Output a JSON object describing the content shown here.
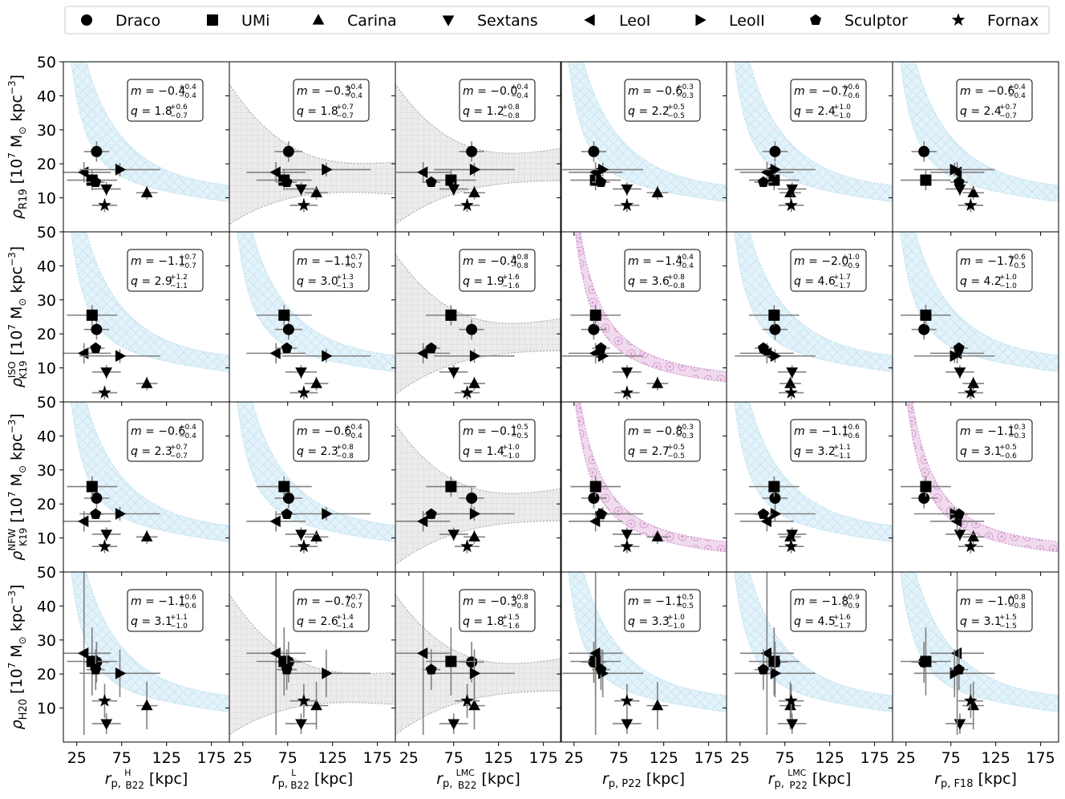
{
  "chart_data": {
    "type": "scatter",
    "title": "",
    "legend": {
      "placement": "top",
      "entries": [
        {
          "name": "Draco",
          "marker": "circle"
        },
        {
          "name": "UMi",
          "marker": "square"
        },
        {
          "name": "Carina",
          "marker": "triangle-up"
        },
        {
          "name": "Sextans",
          "marker": "triangle-down"
        },
        {
          "name": "LeoI",
          "marker": "triangle-left"
        },
        {
          "name": "LeoII",
          "marker": "triangle-right"
        },
        {
          "name": "Sculptor",
          "marker": "pentagon"
        },
        {
          "name": "Fornax",
          "marker": "star"
        }
      ]
    },
    "xlim": [
      10,
      195
    ],
    "ylim": [
      0,
      50
    ],
    "xticks": [
      25,
      75,
      125,
      175
    ],
    "yticks": [
      10,
      20,
      30,
      40,
      50
    ],
    "columns": [
      {
        "xlabel": "r_p, B22^H [kpc]",
        "xlabel_main": "r",
        "xlabel_sub": "p, ",
        "xlabel_sub2": "B22",
        "xlabel_sup": "H",
        "xlabel_unit": " [kpc]"
      },
      {
        "xlabel": "r_p, B22^L [kpc]",
        "xlabel_main": "r",
        "xlabel_sub": "p, ",
        "xlabel_sub2": "B22",
        "xlabel_sup": "L",
        "xlabel_unit": " [kpc]"
      },
      {
        "xlabel": "r_p, B22^LMC [kpc]",
        "xlabel_main": "r",
        "xlabel_sub": "p, ",
        "xlabel_sub2": "B22",
        "xlabel_sup": "LMC",
        "xlabel_unit": " [kpc]"
      },
      {
        "xlabel": "r_p, P22 [kpc]",
        "xlabel_main": "r",
        "xlabel_sub": "p, P22",
        "xlabel_sub2": "",
        "xlabel_sup": "",
        "xlabel_unit": " [kpc]"
      },
      {
        "xlabel": "r_p, P22^LMC [kpc]",
        "xlabel_main": "r",
        "xlabel_sub": "p, ",
        "xlabel_sub2": "P22",
        "xlabel_sup": "LMC",
        "xlabel_unit": " [kpc]"
      },
      {
        "xlabel": "r_p, F18 [kpc]",
        "xlabel_main": "r",
        "xlabel_sub": "p, F18",
        "xlabel_sub2": "",
        "xlabel_sup": "",
        "xlabel_unit": " [kpc]"
      }
    ],
    "rows": [
      {
        "ylabel": "ρ_R19 [10^7 M⊙ kpc^-3]",
        "rho_sub": "R19",
        "rho_sup": "",
        "unit_a": "[10",
        "unit_exp": "7",
        "unit_b": " M",
        "unit_sun": "⊙",
        "unit_c": " kpc",
        "unit_exp2": "−3",
        "unit_d": "]",
        "galaxy_y": [
          23.6,
          15.2,
          11.5,
          12.6,
          17.5,
          18.3,
          14.6,
          7.8
        ]
      },
      {
        "ylabel": "ρ_K19^ISO [10^7 M⊙ kpc^-3]",
        "rho_sub": "K19",
        "rho_sup": "ISO",
        "unit_a": "[10",
        "unit_exp": "7",
        "unit_b": " M",
        "unit_sun": "⊙",
        "unit_c": " kpc",
        "unit_exp2": "−3",
        "unit_d": "]",
        "galaxy_y": [
          21.3,
          25.5,
          5.4,
          8.8,
          14.3,
          13.5,
          15.8,
          2.7
        ]
      },
      {
        "ylabel": "ρ_K19^NFW [10^7 M⊙ kpc^-3]",
        "rho_sub": "K19",
        "rho_sup": "NFW",
        "unit_a": "[10",
        "unit_exp": "7",
        "unit_b": " M",
        "unit_sun": "⊙",
        "unit_c": " kpc",
        "unit_exp2": "−3",
        "unit_d": "]",
        "galaxy_y": [
          21.7,
          25.1,
          10.3,
          11.1,
          14.9,
          17.1,
          17.0,
          7.5
        ]
      },
      {
        "ylabel": "ρ_H20 [10^7 M⊙ kpc^-3]",
        "rho_sub": "H20",
        "rho_sup": "",
        "unit_a": "[10",
        "unit_exp": "7",
        "unit_b": " M",
        "unit_sun": "⊙",
        "unit_c": " kpc",
        "unit_exp2": "−3",
        "unit_d": "]",
        "galaxy_y": [
          23.5,
          23.7,
          10.7,
          5.4,
          26.1,
          20.2,
          21.3,
          12.1
        ]
      }
    ],
    "x_by_column": [
      [
        47,
        42,
        103,
        58,
        33,
        73,
        46,
        56
      ],
      [
        76,
        71,
        107,
        90,
        62,
        118,
        74,
        93
      ],
      [
        95,
        72,
        98,
        75,
        41,
        98,
        50,
        90
      ],
      [
        47,
        49,
        118,
        84,
        49,
        57,
        55,
        84
      ],
      [
        64,
        63,
        81,
        83,
        55,
        64,
        51,
        82
      ],
      [
        45,
        47,
        100,
        85,
        82,
        79,
        84,
        97
      ]
    ],
    "panels": [
      [
        {
          "m": "−0.4",
          "m_up": "+0.4",
          "m_dn": "−0.4",
          "q": "1.8",
          "q_up": "+0.6",
          "q_dn": "−0.7",
          "band": "blue"
        },
        {
          "m": "−0.3",
          "m_up": "+0.4",
          "m_dn": "−0.4",
          "q": "1.8",
          "q_up": "+0.7",
          "q_dn": "−0.7",
          "band": "gray"
        },
        {
          "m": "−0.0",
          "m_up": "+0.4",
          "m_dn": "−0.4",
          "q": "1.2",
          "q_up": "+0.8",
          "q_dn": "−0.8",
          "band": "gray"
        },
        {
          "m": "−0.6",
          "m_up": "+0.3",
          "m_dn": "−0.3",
          "q": "2.2",
          "q_up": "+0.5",
          "q_dn": "−0.5",
          "band": "blue"
        },
        {
          "m": "−0.7",
          "m_up": "+0.6",
          "m_dn": "−0.6",
          "q": "2.4",
          "q_up": "+1.0",
          "q_dn": "−1.0",
          "band": "blue"
        },
        {
          "m": "−0.6",
          "m_up": "+0.4",
          "m_dn": "−0.4",
          "q": "2.4",
          "q_up": "+0.7",
          "q_dn": "−0.7",
          "band": "blue"
        }
      ],
      [
        {
          "m": "−1.1",
          "m_up": "+0.7",
          "m_dn": "−0.7",
          "q": "2.9",
          "q_up": "+1.2",
          "q_dn": "−1.1",
          "band": "blue"
        },
        {
          "m": "−1.1",
          "m_up": "+0.7",
          "m_dn": "−0.7",
          "q": "3.0",
          "q_up": "+1.3",
          "q_dn": "−1.3",
          "band": "blue"
        },
        {
          "m": "−0.4",
          "m_up": "+0.8",
          "m_dn": "−0.8",
          "q": "1.9",
          "q_up": "+1.6",
          "q_dn": "−1.6",
          "band": "gray"
        },
        {
          "m": "−1.4",
          "m_up": "+0.4",
          "m_dn": "−0.4",
          "q": "3.6",
          "q_up": "+0.8",
          "q_dn": "−0.8",
          "band": "pink"
        },
        {
          "m": "−2.0",
          "m_up": "+1.0",
          "m_dn": "−0.9",
          "q": "4.6",
          "q_up": "+1.7",
          "q_dn": "−1.7",
          "band": "blue"
        },
        {
          "m": "−1.7",
          "m_up": "+0.6",
          "m_dn": "−0.5",
          "q": "4.2",
          "q_up": "+1.0",
          "q_dn": "−1.0",
          "band": "blue"
        }
      ],
      [
        {
          "m": "−0.6",
          "m_up": "+0.4",
          "m_dn": "−0.4",
          "q": "2.3",
          "q_up": "+0.7",
          "q_dn": "−0.7",
          "band": "blue"
        },
        {
          "m": "−0.6",
          "m_up": "+0.4",
          "m_dn": "−0.4",
          "q": "2.3",
          "q_up": "+0.8",
          "q_dn": "−0.8",
          "band": "blue"
        },
        {
          "m": "−0.1",
          "m_up": "+0.5",
          "m_dn": "−0.5",
          "q": "1.4",
          "q_up": "+1.0",
          "q_dn": "−1.0",
          "band": "gray"
        },
        {
          "m": "−0.8",
          "m_up": "+0.3",
          "m_dn": "−0.3",
          "q": "2.7",
          "q_up": "+0.5",
          "q_dn": "−0.5",
          "band": "pink"
        },
        {
          "m": "−1.1",
          "m_up": "+0.6",
          "m_dn": "−0.6",
          "q": "3.2",
          "q_up": "+1.1",
          "q_dn": "−1.1",
          "band": "blue"
        },
        {
          "m": "−1.1",
          "m_up": "+0.3",
          "m_dn": "−0.3",
          "q": "3.1",
          "q_up": "+0.5",
          "q_dn": "−0.6",
          "band": "pink"
        }
      ],
      [
        {
          "m": "−1.1",
          "m_up": "+0.6",
          "m_dn": "−0.6",
          "q": "3.1",
          "q_up": "+1.1",
          "q_dn": "−1.0",
          "band": "blue"
        },
        {
          "m": "−0.7",
          "m_up": "+0.7",
          "m_dn": "−0.7",
          "q": "2.6",
          "q_up": "+1.4",
          "q_dn": "−1.4",
          "band": "gray"
        },
        {
          "m": "−0.3",
          "m_up": "+0.8",
          "m_dn": "−0.8",
          "q": "1.8",
          "q_up": "+1.5",
          "q_dn": "−1.6",
          "band": "gray"
        },
        {
          "m": "−1.1",
          "m_up": "+0.5",
          "m_dn": "−0.5",
          "q": "3.3",
          "q_up": "+1.0",
          "q_dn": "−1.0",
          "band": "blue"
        },
        {
          "m": "−1.8",
          "m_up": "+0.9",
          "m_dn": "−0.9",
          "q": "4.5",
          "q_up": "+1.6",
          "q_dn": "−1.7",
          "band": "blue"
        },
        {
          "m": "−1.0",
          "m_up": "+0.8",
          "m_dn": "−0.8",
          "q": "3.1",
          "q_up": "+1.5",
          "q_dn": "−1.5",
          "band": "blue"
        }
      ]
    ],
    "colors": {
      "blue_fill": "#e3f2fa",
      "blue_edge": "#a9d6ec",
      "gray_fill": "#e9e9e9",
      "gray_edge": "#9a9a9a",
      "pink_fill": "#f0d4ec",
      "pink_edge": "#c27fc0",
      "marker": "#000000",
      "errorbar": "#808080"
    }
  }
}
